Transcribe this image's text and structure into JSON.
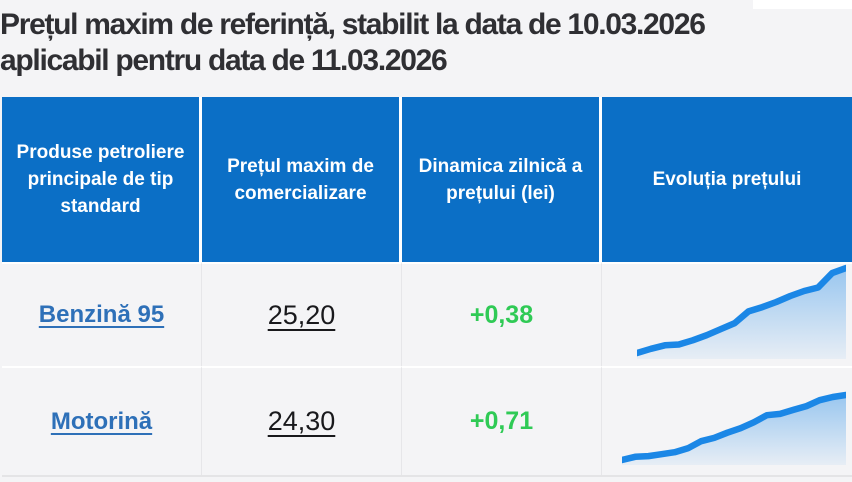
{
  "page": {
    "title_line1": "Prețul maxim de referință, stabilit la data de 10.03.2026",
    "title_line2": "aplicabil pentru data de 11.03.2026",
    "set_date": "10.03.2026",
    "applicable_date": "11.03.2026"
  },
  "colors": {
    "header_bg": "#0b6fc6",
    "header_text": "#ffffff",
    "page_bg": "#f4f4f6",
    "title_text": "#2f2f33",
    "link_blue": "#2e70b8",
    "positive_green": "#2fca55",
    "price_text": "#19191c",
    "sparkline_blue": "#1b87e6"
  },
  "table": {
    "headers": [
      "Produse petroliere principale de tip standard",
      "Prețul maxim de comercializare",
      "Dinamica zilnică a prețului (lei)",
      "Evoluția prețului"
    ],
    "rows": [
      {
        "product": "Benzină 95",
        "price": "25,20",
        "daily_change": "+0,38"
      },
      {
        "product": "Motorină",
        "price": "24,30",
        "daily_change": "+0,71"
      }
    ]
  },
  "chart_data": [
    {
      "type": "area",
      "name": "Evoluția prețului — Benzină 95",
      "note": "sparkline without axes; values normalized 0-1 from pixel trace, rising trend with sharp spike at the end",
      "values": [
        0,
        0.05,
        0.09,
        0.1,
        0.15,
        0.21,
        0.28,
        0.35,
        0.49,
        0.54,
        0.6,
        0.67,
        0.73,
        0.77,
        0.94,
        1.0
      ],
      "line_color": "#1b87e6",
      "fill": "vertical gradient of line color, opacity 0.42 to 0.06",
      "legend": "none",
      "grid": "off"
    },
    {
      "type": "area",
      "name": "Evoluția prețului — Motorină",
      "note": "sparkline without axes; values normalized 0-1 from pixel trace, flat start then steady rise",
      "values": [
        0,
        0.05,
        0.06,
        0.09,
        0.12,
        0.18,
        0.29,
        0.34,
        0.42,
        0.49,
        0.58,
        0.69,
        0.71,
        0.77,
        0.83,
        0.92,
        0.97,
        1.0
      ],
      "line_color": "#1b87e6",
      "fill": "vertical gradient of line color, opacity 0.42 to 0.06",
      "legend": "none",
      "grid": "off"
    }
  ]
}
